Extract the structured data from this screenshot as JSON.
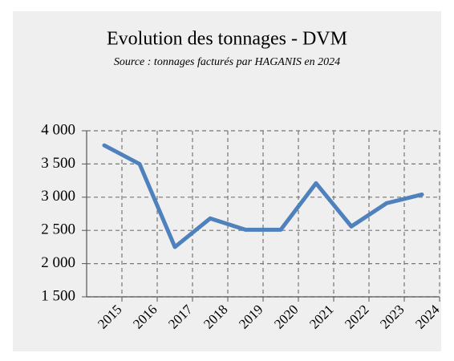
{
  "chart_data": {
    "type": "line",
    "title": "Evolution des tonnages - DVM",
    "subtitle": "Source : tonnages facturés par HAGANIS en 2024",
    "categories": [
      "2015",
      "2016",
      "2017",
      "2018",
      "2019",
      "2020",
      "2021",
      "2022",
      "2023",
      "2024"
    ],
    "series": [
      {
        "name": "DVM",
        "color": "#4f81bd",
        "values": [
          3780,
          3500,
          2250,
          2680,
          2510,
          2510,
          3210,
          2560,
          2910,
          3040
        ]
      }
    ],
    "ylim": [
      1500,
      4000
    ],
    "yticks": [
      {
        "value": 1500,
        "label": "1 500"
      },
      {
        "value": 2000,
        "label": "2 000"
      },
      {
        "value": 2500,
        "label": "2 500"
      },
      {
        "value": 3000,
        "label": "3 000"
      },
      {
        "value": 3500,
        "label": "3 500"
      },
      {
        "value": 4000,
        "label": "4 000"
      }
    ],
    "grid": true
  }
}
